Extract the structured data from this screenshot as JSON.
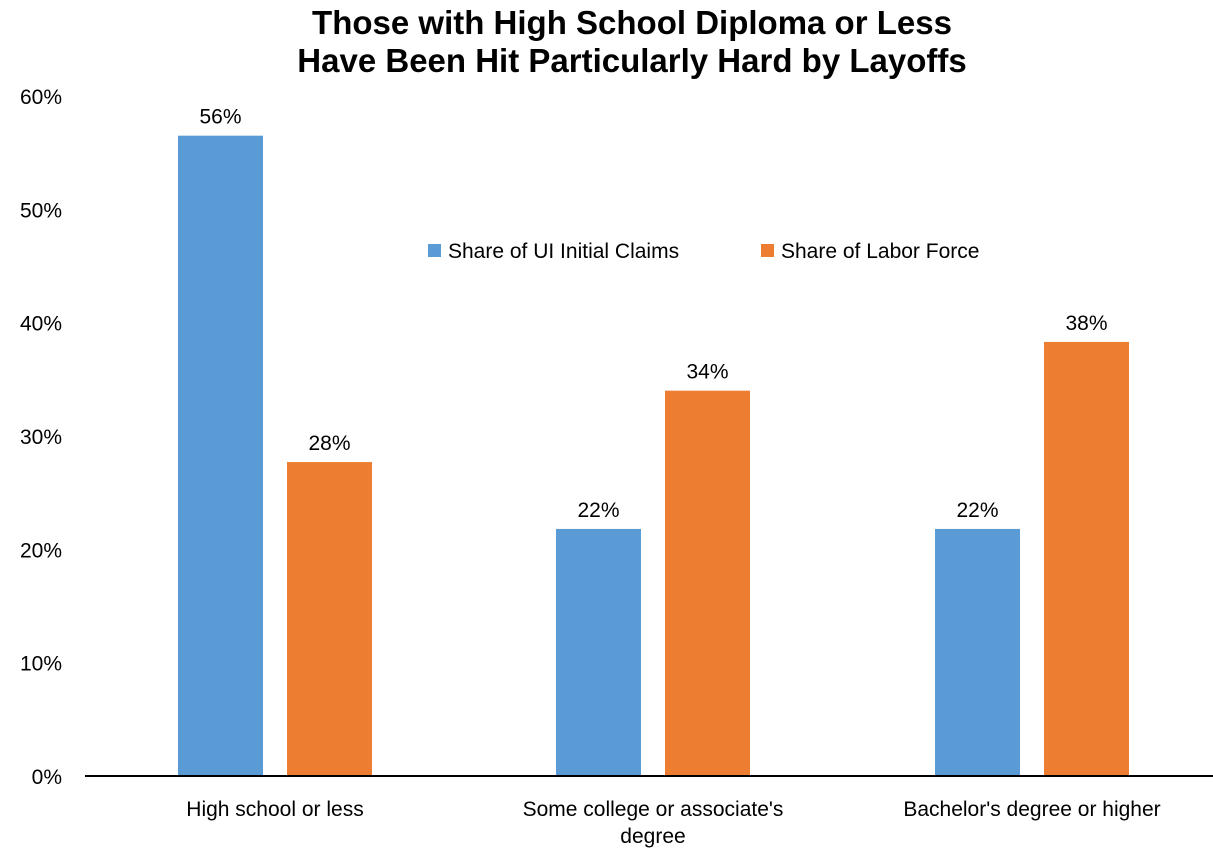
{
  "chart_data": {
    "type": "bar",
    "title_lines": [
      "Those with High School Diploma or Less",
      "Have Been Hit Particularly Hard by Layoffs"
    ],
    "categories": [
      [
        "High school or less"
      ],
      [
        "Some college or associate's",
        "degree"
      ],
      [
        "Bachelor's degree or higher"
      ]
    ],
    "series": [
      {
        "name": "Share of UI Initial Claims",
        "color": "#5B9BD5",
        "values": [
          56.5,
          21.8,
          21.8
        ],
        "labels": [
          "56%",
          "22%",
          "22%"
        ]
      },
      {
        "name": "Share of Labor Force",
        "color": "#ED7D31",
        "values": [
          27.7,
          34.0,
          38.3
        ],
        "labels": [
          "28%",
          "34%",
          "38%"
        ]
      }
    ],
    "ylim": [
      0,
      60
    ],
    "yticks": [
      {
        "value": 0,
        "label": "0%"
      },
      {
        "value": 10,
        "label": "10%"
      },
      {
        "value": 20,
        "label": "20%"
      },
      {
        "value": 30,
        "label": "30%"
      },
      {
        "value": 40,
        "label": "40%"
      },
      {
        "value": 50,
        "label": "50%"
      },
      {
        "value": 60,
        "label": "60%"
      }
    ],
    "grid": false,
    "legend_position": "upper-right inside plot",
    "axis_color": "#000000"
  }
}
